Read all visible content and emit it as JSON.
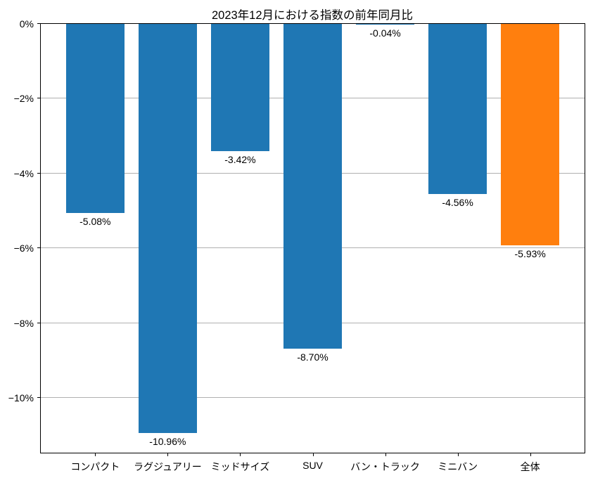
{
  "chart_data": {
    "type": "bar",
    "title": "2023年12月における指数の前年同月比",
    "categories": [
      "コンパクト",
      "ラグジュアリー",
      "ミッドサイズ",
      "SUV",
      "バン・トラック",
      "ミニバン",
      "全体"
    ],
    "values": [
      -5.08,
      -10.96,
      -3.42,
      -8.7,
      -0.04,
      -4.56,
      -5.93
    ],
    "value_labels": [
      "-5.08%",
      "-10.96%",
      "-3.42%",
      "-8.70%",
      "-0.04%",
      "-4.56%",
      "-5.93%"
    ],
    "bar_colors": [
      "#1f77b4",
      "#1f77b4",
      "#1f77b4",
      "#1f77b4",
      "#1f77b4",
      "#1f77b4",
      "#ff7f0e"
    ],
    "xlabel": "",
    "ylabel": "",
    "ylim": [
      -11.5,
      0
    ],
    "yticks": [
      0,
      -2,
      -4,
      -6,
      -8,
      -10
    ],
    "ytick_labels": [
      "0%",
      "−2%",
      "−4%",
      "−6%",
      "−8%",
      "−10%"
    ],
    "grid": "horizontal",
    "grid_color": "#b0b0b0",
    "legend": "none",
    "spine_color": "#000000",
    "background_color": "#ffffff"
  }
}
